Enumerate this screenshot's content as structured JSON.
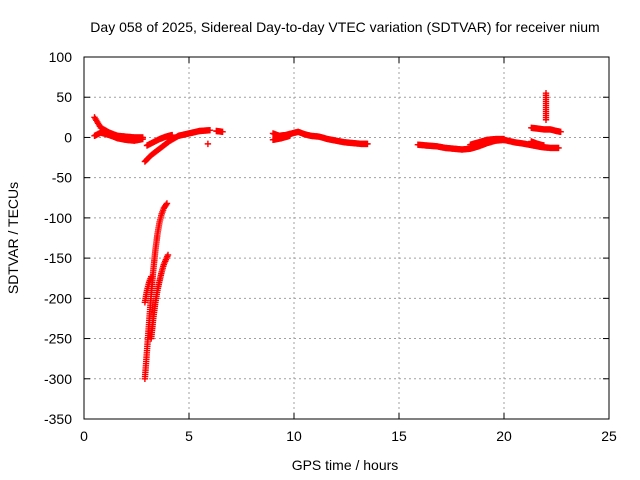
{
  "chart_data": {
    "type": "scatter",
    "title": "Day 058 of 2025, Sidereal Day-to-day VTEC variation (SDTVAR) for receiver nium",
    "xlabel": "GPS time / hours",
    "ylabel": "SDTVAR / TECUs",
    "xlim": [
      0,
      25
    ],
    "ylim": [
      -350,
      100
    ],
    "xticks": [
      0,
      5,
      10,
      15,
      20,
      25
    ],
    "yticks": [
      100,
      50,
      0,
      -50,
      -100,
      -150,
      -200,
      -250,
      -300,
      -350
    ],
    "grid": true,
    "marker": "+",
    "color": "#ff0000",
    "segments": [
      [
        [
          0.5,
          25
        ],
        [
          0.8,
          12
        ],
        [
          1.2,
          6
        ],
        [
          1.6,
          2
        ],
        [
          2.0,
          1
        ],
        [
          2.4,
          0
        ],
        [
          2.8,
          0
        ]
      ],
      [
        [
          0.5,
          2
        ],
        [
          0.8,
          6
        ],
        [
          1.2,
          3
        ],
        [
          1.6,
          -1
        ],
        [
          2.0,
          -3
        ],
        [
          2.4,
          -4
        ],
        [
          2.8,
          -2
        ]
      ],
      [
        [
          2.9,
          -30
        ],
        [
          3.2,
          -22
        ],
        [
          3.5,
          -16
        ],
        [
          3.8,
          -10
        ],
        [
          4.1,
          -4
        ],
        [
          4.5,
          2
        ],
        [
          5.0,
          5
        ],
        [
          5.5,
          8
        ],
        [
          6.0,
          9
        ]
      ],
      [
        [
          3.0,
          -10
        ],
        [
          3.3,
          -6
        ],
        [
          3.6,
          -2
        ],
        [
          3.9,
          1
        ],
        [
          4.2,
          3
        ]
      ],
      [
        [
          2.9,
          -300
        ],
        [
          3.0,
          -265
        ],
        [
          3.1,
          -230
        ],
        [
          3.2,
          -195
        ],
        [
          3.3,
          -165
        ],
        [
          3.4,
          -140
        ],
        [
          3.5,
          -120
        ],
        [
          3.6,
          -105
        ],
        [
          3.7,
          -95
        ],
        [
          3.8,
          -88
        ],
        [
          3.95,
          -82
        ]
      ],
      [
        [
          2.9,
          -205
        ],
        [
          3.0,
          -190
        ],
        [
          3.1,
          -180
        ],
        [
          3.2,
          -173
        ]
      ],
      [
        [
          3.2,
          -250
        ],
        [
          3.3,
          -225
        ],
        [
          3.4,
          -205
        ],
        [
          3.5,
          -190
        ],
        [
          3.6,
          -178
        ],
        [
          3.7,
          -167
        ],
        [
          3.8,
          -158
        ],
        [
          3.9,
          -152
        ],
        [
          4.0,
          -146
        ]
      ],
      [
        [
          5.9,
          -8
        ]
      ],
      [
        [
          6.3,
          8
        ],
        [
          6.6,
          7
        ]
      ],
      [
        [
          9.0,
          5
        ],
        [
          9.3,
          2
        ],
        [
          9.6,
          3
        ],
        [
          9.9,
          5
        ],
        [
          10.2,
          7
        ],
        [
          10.5,
          4
        ],
        [
          10.8,
          2
        ],
        [
          11.2,
          1
        ],
        [
          11.6,
          -2
        ],
        [
          12.0,
          -4
        ],
        [
          12.4,
          -6
        ],
        [
          12.8,
          -7
        ],
        [
          13.2,
          -8
        ],
        [
          13.5,
          -8
        ]
      ],
      [
        [
          9.0,
          -3
        ],
        [
          9.4,
          -1
        ],
        [
          9.8,
          2
        ]
      ],
      [
        [
          15.9,
          -9
        ],
        [
          16.3,
          -10
        ],
        [
          16.8,
          -11
        ],
        [
          17.2,
          -13
        ],
        [
          17.6,
          -14
        ],
        [
          18.0,
          -15
        ],
        [
          18.4,
          -14
        ],
        [
          18.8,
          -11
        ],
        [
          19.2,
          -7
        ],
        [
          19.6,
          -4
        ],
        [
          20.0,
          -3
        ],
        [
          20.5,
          -6
        ],
        [
          21.0,
          -8
        ],
        [
          21.4,
          -10
        ],
        [
          21.8,
          -12
        ],
        [
          22.2,
          -13
        ],
        [
          22.6,
          -13
        ]
      ],
      [
        [
          18.4,
          -9
        ],
        [
          18.8,
          -6
        ],
        [
          19.2,
          -3
        ],
        [
          19.6,
          -2
        ],
        [
          20.0,
          -2
        ]
      ],
      [
        [
          21.3,
          12
        ],
        [
          21.6,
          11
        ],
        [
          21.9,
          10
        ],
        [
          22.2,
          10
        ],
        [
          22.5,
          8
        ],
        [
          22.7,
          7
        ]
      ],
      [
        [
          21.3,
          -5
        ],
        [
          21.6,
          -8
        ],
        [
          21.9,
          -10
        ]
      ],
      [
        [
          22.0,
          55
        ],
        [
          22.0,
          22
        ]
      ]
    ]
  }
}
